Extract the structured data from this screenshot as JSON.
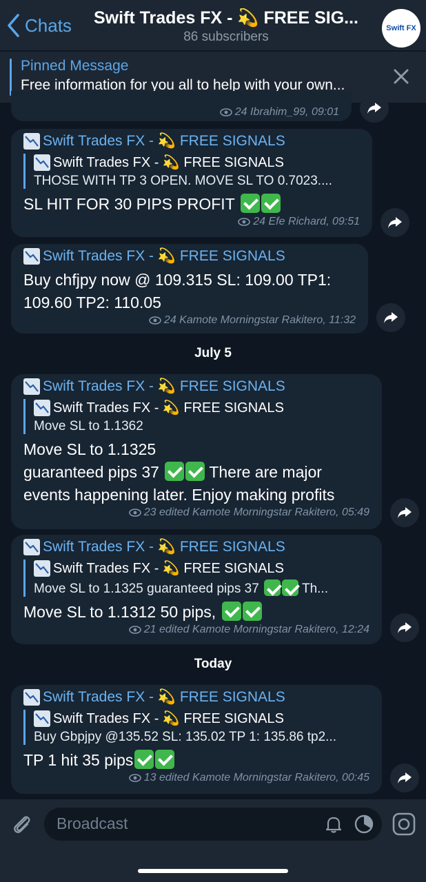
{
  "header": {
    "back_label": "Chats",
    "title": "Swift Trades FX - 💫 FREE SIG...",
    "title_icon": "chart-decreasing-icon",
    "subtitle": "86 subscribers",
    "avatar_text": "Swift FX"
  },
  "pinned": {
    "title": "Pinned Message",
    "text": "Free information for you all to help with your own..."
  },
  "messages": [
    {
      "meta": "24 Ibrahim_99, 09:01"
    },
    {
      "sender": "Swift Trades FX - 💫 FREE SIGNALS",
      "reply_sender": "Swift Trades FX - 💫 FREE SIGNALS",
      "reply_text": "THOSE WITH TP 3 OPEN. MOVE SL TO 0.7023....",
      "text": "SL HIT FOR 30 PIPS PROFIT",
      "meta": "24 Efe Richard, 09:51"
    },
    {
      "sender": "Swift Trades FX - 💫 FREE SIGNALS",
      "text": "Buy chfjpy now @ 109.315 SL: 109.00 TP1: 109.60 TP2: 110.05",
      "meta": "24 Kamote Morningstar Rakitero, 11:32"
    },
    {
      "date": "July 5"
    },
    {
      "sender": "Swift Trades FX - 💫 FREE SIGNALS",
      "reply_sender": "Swift Trades FX - 💫 FREE SIGNALS",
      "reply_text": "Move SL to 1.1362",
      "text_line1": "Move SL to 1.1325",
      "text_line2a": "guaranteed pips 37",
      "text_line2b": "There are major events happening later. Enjoy making profits",
      "meta": "23 edited Kamote Morningstar Rakitero, 05:49"
    },
    {
      "sender": "Swift Trades FX - 💫 FREE SIGNALS",
      "reply_sender": "Swift Trades FX - 💫 FREE SIGNALS",
      "reply_text_a": "Move SL to 1.1325  guaranteed pips 37",
      "reply_text_b": "Th...",
      "text": "Move SL to 1.1312 50 pips,",
      "meta": "21 edited Kamote Morningstar Rakitero, 12:24"
    },
    {
      "date": "Today"
    },
    {
      "sender": "Swift Trades FX - 💫 FREE SIGNALS",
      "reply_sender": "Swift Trades FX - 💫 FREE SIGNALS",
      "reply_text": "Buy Gbpjpy @135.52 SL: 135.02 TP 1: 135.86 tp2...",
      "text": "TP 1 hit 35 pips",
      "meta": "13 edited Kamote Morningstar Rakitero, 00:45"
    }
  ],
  "composer": {
    "placeholder": "Broadcast"
  },
  "colors": {
    "background": "#0e1621",
    "header": "#1d2733",
    "bubble": "#182533",
    "accent": "#5aa7ea",
    "check": "#40b74c"
  }
}
